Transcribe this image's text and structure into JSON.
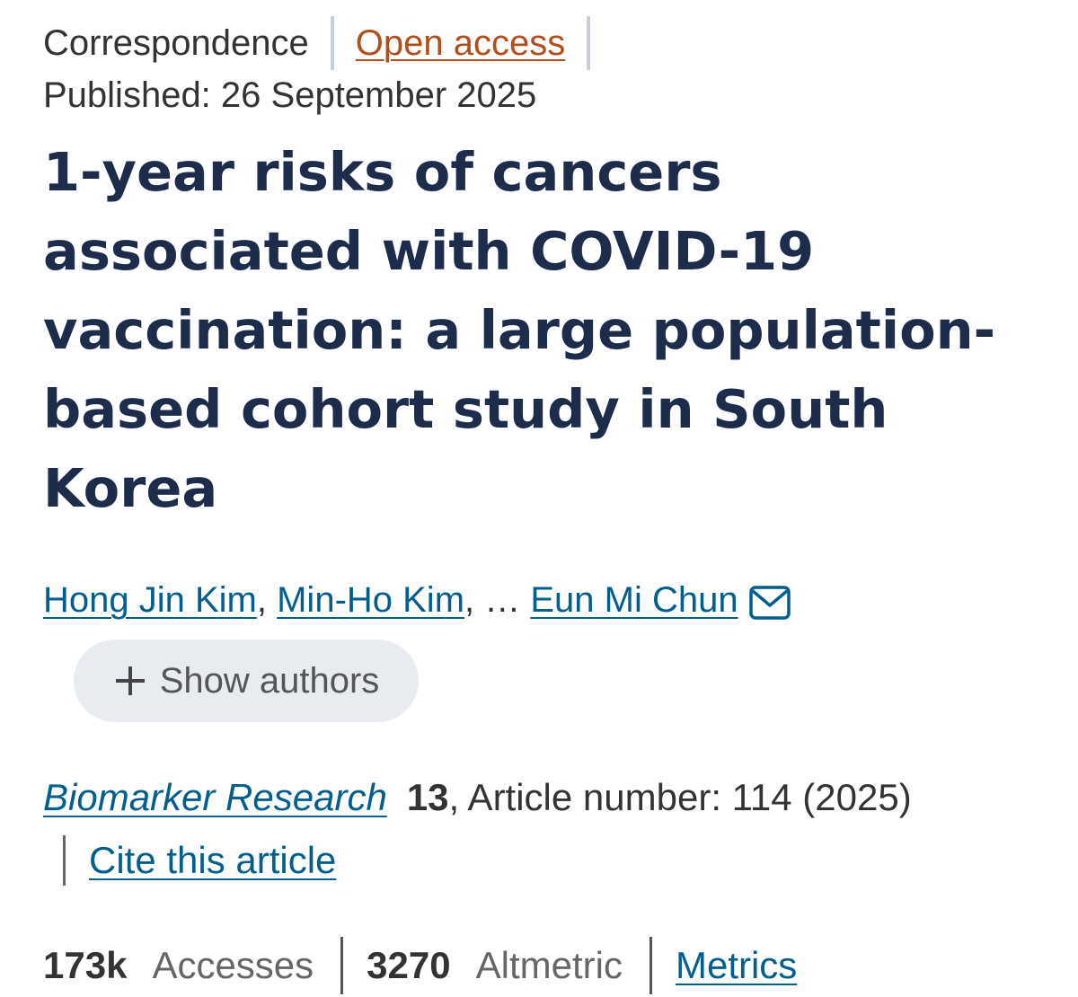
{
  "article": {
    "type": "Correspondence",
    "access": "Open access",
    "published": "Published: 26 September 2025",
    "title": "1-year risks of cancers associated with COVID-19 vaccination: a large population-based cohort study in South Korea"
  },
  "authors": {
    "list": [
      "Hong Jin Kim",
      "Min-Ho Kim",
      "Eun Mi Chun"
    ],
    "separator": ", ",
    "ellipsis": ", … ",
    "corresponding_icon": "mail-icon",
    "show_authors_label": "Show authors",
    "show_authors_icon": "plus-icon"
  },
  "citation": {
    "journal": "Biomarker Research",
    "volume": "13",
    "article_info": ", Article number: 114 (2025)",
    "cite_label": "Cite this article"
  },
  "metrics": {
    "accesses_value": "173k",
    "accesses_label": "Accesses",
    "altmetric_value": "3270",
    "altmetric_label": "Altmetric",
    "metrics_link": "Metrics"
  },
  "colors": {
    "title": "#1c2c4a",
    "link": "#025e8d",
    "open_access": "#b14f1c",
    "pill_bg": "#e8ecf0"
  }
}
